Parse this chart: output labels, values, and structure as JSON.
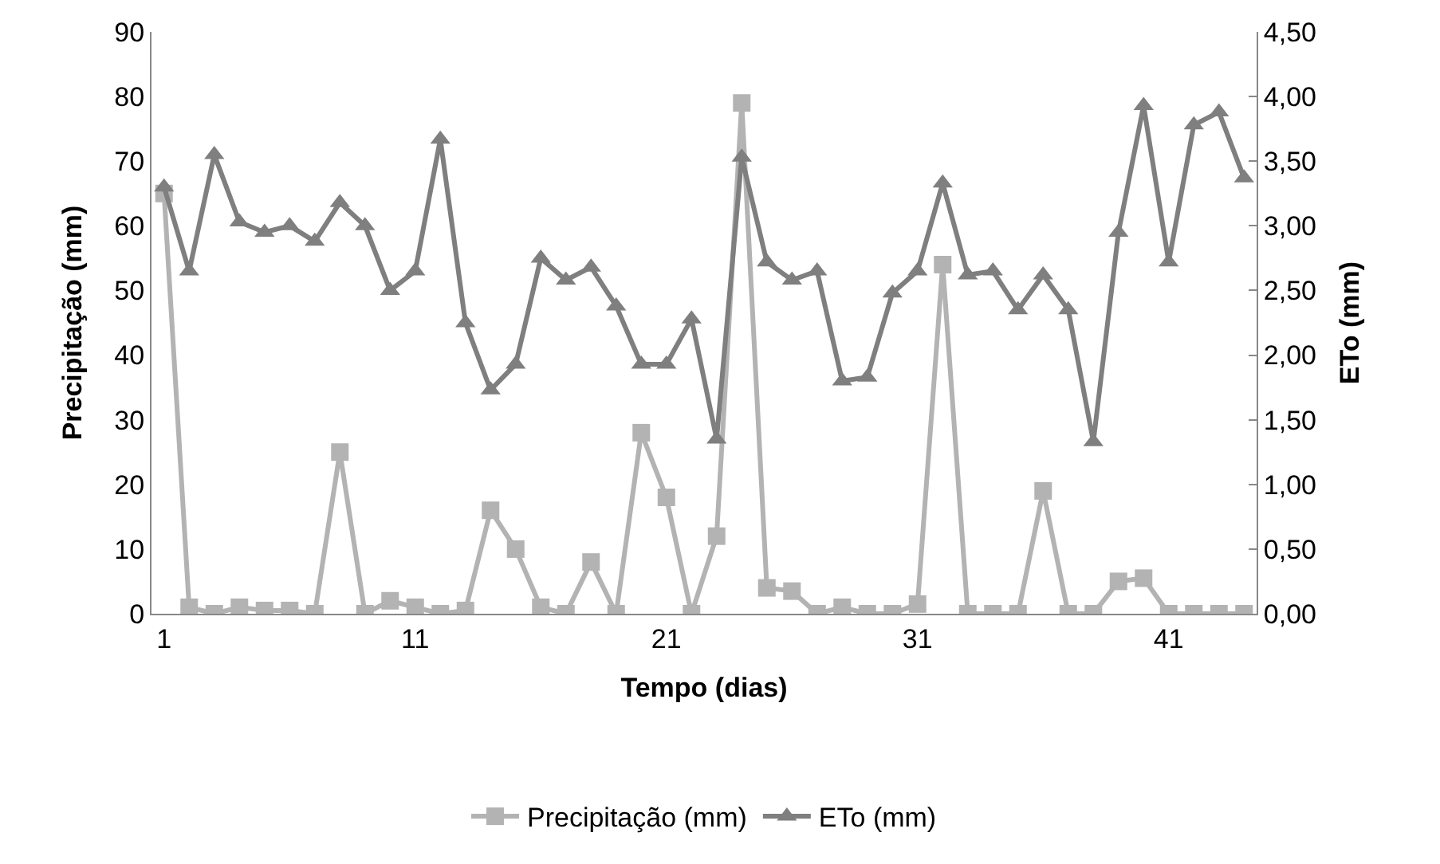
{
  "chart_data": {
    "type": "line",
    "xlabel": "Tempo (dias)",
    "ylabel": "Precipitação (mm)",
    "y2label": "ETo (mm)",
    "x": [
      1,
      2,
      3,
      4,
      5,
      6,
      7,
      8,
      9,
      10,
      11,
      12,
      13,
      14,
      15,
      16,
      17,
      18,
      19,
      20,
      21,
      22,
      23,
      24,
      25,
      26,
      27,
      28,
      29,
      30,
      31,
      32,
      33,
      34,
      35,
      36,
      37,
      38,
      39,
      40,
      41,
      42,
      43,
      44
    ],
    "series": [
      {
        "name": "Precipitação (mm)",
        "color": "#b3b3b3",
        "marker": "square",
        "values": [
          65,
          1,
          0,
          1,
          0.5,
          0.5,
          0,
          25,
          0,
          2,
          1,
          0,
          0.5,
          16,
          10,
          1,
          0,
          8,
          0,
          28,
          18,
          0,
          12,
          79,
          4,
          3.5,
          0,
          1,
          0,
          0,
          1.5,
          54,
          0,
          0,
          0,
          19,
          0,
          0,
          5,
          5.5,
          0,
          0,
          0,
          0
        ]
      },
      {
        "name": "ETo (mm)",
        "color": "#7f7f7f",
        "marker": "triangle",
        "axis": "y2",
        "values": [
          3.3,
          2.65,
          3.55,
          3.03,
          2.95,
          3.0,
          2.88,
          3.18,
          3.0,
          2.5,
          2.65,
          3.67,
          2.25,
          1.73,
          1.93,
          2.75,
          2.58,
          2.68,
          2.38,
          1.93,
          1.93,
          2.28,
          1.35,
          3.53,
          2.72,
          2.58,
          2.65,
          1.8,
          1.83,
          2.48,
          2.65,
          3.33,
          2.62,
          2.65,
          2.35,
          2.62,
          2.35,
          1.33,
          2.95,
          3.93,
          2.72,
          3.78,
          3.88,
          3.37
        ]
      }
    ],
    "xlim": [
      0.5,
      44.5
    ],
    "xticks": [
      1,
      11,
      21,
      31,
      41
    ],
    "ylim": [
      0,
      90
    ],
    "yticks": [
      0,
      10,
      20,
      30,
      40,
      50,
      60,
      70,
      80,
      90
    ],
    "y2lim": [
      0,
      4.5
    ],
    "y2ticks": [
      {
        "value": 0,
        "label": "0,00"
      },
      {
        "value": 0.5,
        "label": "0,50"
      },
      {
        "value": 1,
        "label": "1,00"
      },
      {
        "value": 1.5,
        "label": "1,50"
      },
      {
        "value": 2,
        "label": "2,00"
      },
      {
        "value": 2.5,
        "label": "2,50"
      },
      {
        "value": 3,
        "label": "3,00"
      },
      {
        "value": 3.5,
        "label": "3,50"
      },
      {
        "value": 4,
        "label": "4,00"
      },
      {
        "value": 4.5,
        "label": "4,50"
      }
    ],
    "legend": "bottom",
    "line_style": "solid"
  }
}
